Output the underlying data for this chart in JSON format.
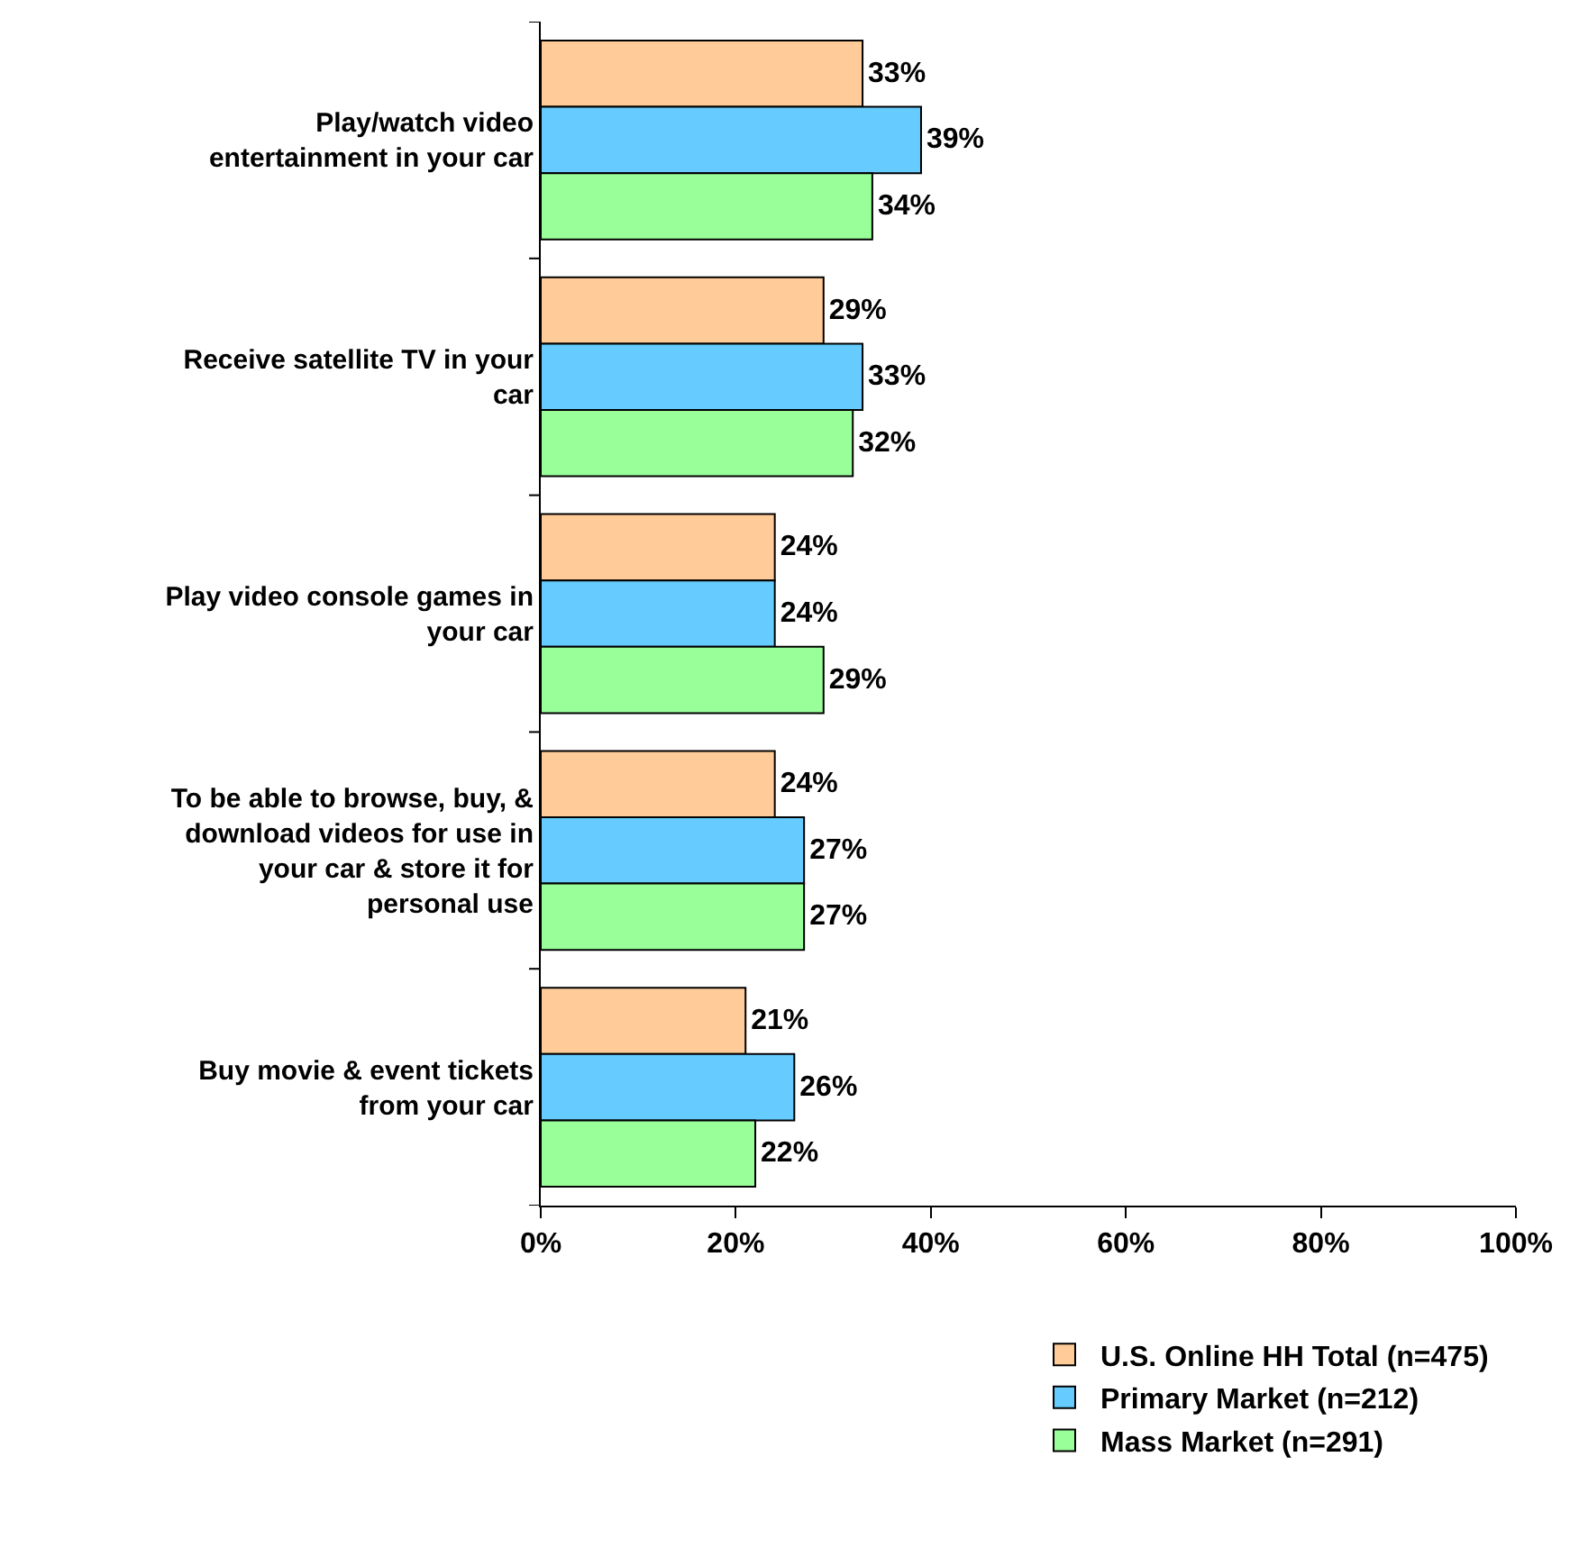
{
  "chart_data": {
    "type": "bar",
    "orientation": "horizontal",
    "categories": [
      "Play/watch video entertainment in your car",
      "Receive satellite TV in your car",
      "Play video console games in your car",
      "To be able to browse, buy, & download videos for use in your car & store it for personal use",
      "Buy movie & event tickets from your car"
    ],
    "series": [
      {
        "name": "U.S. Online HH Total (n=475)",
        "color": "#ffcc99",
        "values": [
          33,
          29,
          24,
          24,
          21
        ],
        "value_labels": [
          "33%",
          "29%",
          "24%",
          "24%",
          "21%"
        ]
      },
      {
        "name": "Primary Market (n=212)",
        "color": "#66ccff",
        "values": [
          39,
          33,
          24,
          27,
          26
        ],
        "value_labels": [
          "39%",
          "33%",
          "24%",
          "27%",
          "26%"
        ]
      },
      {
        "name": "Mass Market (n=291)",
        "color": "#99ff99",
        "values": [
          34,
          32,
          29,
          27,
          22
        ],
        "value_labels": [
          "34%",
          "32%",
          "29%",
          "27%",
          "22%"
        ]
      }
    ],
    "xlim": [
      0,
      100
    ],
    "xticks": [
      {
        "value": 0,
        "label": "0%"
      },
      {
        "value": 20,
        "label": "20%"
      },
      {
        "value": 40,
        "label": "40%"
      },
      {
        "value": 60,
        "label": "60%"
      },
      {
        "value": 80,
        "label": "80%"
      },
      {
        "value": 100,
        "label": "100%"
      }
    ],
    "grid": false,
    "legend": "bottom"
  }
}
